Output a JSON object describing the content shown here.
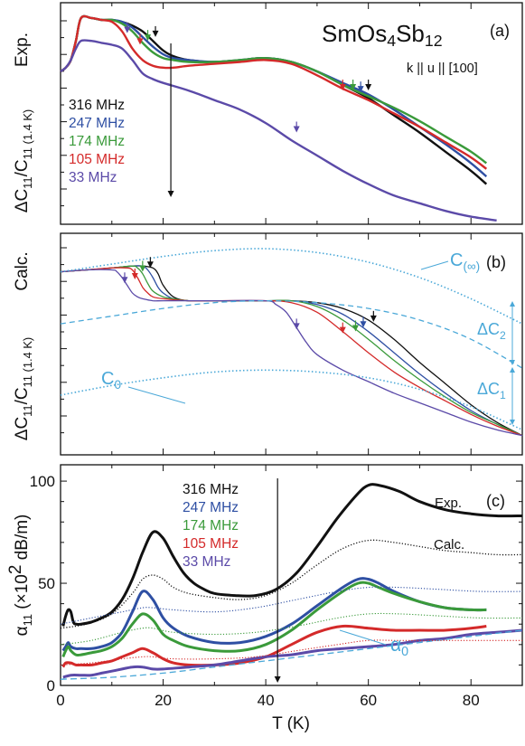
{
  "chart_data": [
    {
      "type": "line",
      "panel_label": "(a)",
      "title": "SmOs₄Sb₁₂",
      "condition": "k || u || [100]",
      "side_label": "Exp.",
      "ylabel": "ΔC₁₁/C₁₁ (1.4 K)",
      "xlim": [
        0,
        90
      ],
      "series": [
        {
          "name": "316 MHz",
          "color": "#111111",
          "x": [
            0,
            1,
            2,
            3,
            4,
            6,
            8,
            10,
            12,
            14,
            16,
            18,
            20,
            22,
            25,
            30,
            35,
            40,
            45,
            50,
            55,
            60,
            65,
            70,
            75,
            80,
            83
          ],
          "y": [
            0.64,
            0.66,
            0.7,
            0.8,
            0.92,
            0.92,
            0.91,
            0.91,
            0.9,
            0.88,
            0.85,
            0.8,
            0.75,
            0.72,
            0.7,
            0.69,
            0.7,
            0.71,
            0.69,
            0.64,
            0.57,
            0.5,
            0.41,
            0.32,
            0.22,
            0.12,
            0.05
          ]
        },
        {
          "name": "247 MHz",
          "color": "#2e4fa3",
          "x": [
            0,
            1,
            2,
            3,
            4,
            6,
            8,
            10,
            12,
            14,
            16,
            18,
            20,
            22,
            25,
            30,
            35,
            40,
            45,
            50,
            55,
            60,
            65,
            70,
            75,
            80,
            83
          ],
          "y": [
            0.64,
            0.66,
            0.7,
            0.8,
            0.92,
            0.92,
            0.91,
            0.91,
            0.9,
            0.87,
            0.82,
            0.77,
            0.73,
            0.71,
            0.7,
            0.69,
            0.7,
            0.71,
            0.69,
            0.64,
            0.58,
            0.52,
            0.44,
            0.35,
            0.26,
            0.16,
            0.09
          ]
        },
        {
          "name": "174 MHz",
          "color": "#3a9a3a",
          "x": [
            0,
            1,
            2,
            3,
            4,
            6,
            8,
            10,
            12,
            14,
            16,
            18,
            20,
            22,
            25,
            30,
            35,
            40,
            45,
            50,
            55,
            60,
            65,
            70,
            75,
            80,
            83
          ],
          "y": [
            0.64,
            0.66,
            0.7,
            0.8,
            0.92,
            0.92,
            0.91,
            0.91,
            0.89,
            0.85,
            0.79,
            0.74,
            0.71,
            0.7,
            0.69,
            0.69,
            0.7,
            0.71,
            0.69,
            0.64,
            0.57,
            0.51,
            0.45,
            0.38,
            0.3,
            0.22,
            0.16
          ]
        },
        {
          "name": "105 MHz",
          "color": "#d42a2a",
          "x": [
            0,
            1,
            2,
            3,
            4,
            6,
            8,
            10,
            12,
            14,
            16,
            18,
            20,
            22,
            25,
            30,
            35,
            40,
            45,
            50,
            55,
            60,
            65,
            70,
            75,
            80,
            83
          ],
          "y": [
            0.64,
            0.66,
            0.7,
            0.8,
            0.92,
            0.92,
            0.91,
            0.9,
            0.85,
            0.76,
            0.7,
            0.67,
            0.66,
            0.66,
            0.67,
            0.68,
            0.69,
            0.7,
            0.68,
            0.62,
            0.55,
            0.49,
            0.42,
            0.35,
            0.27,
            0.19,
            0.13
          ]
        },
        {
          "name": "33 MHz",
          "color": "#5b4aa8",
          "x": [
            0,
            1,
            2,
            3,
            4,
            6,
            8,
            10,
            12,
            14,
            16,
            18,
            20,
            25,
            30,
            35,
            40,
            45,
            50,
            55,
            60,
            65,
            70,
            75,
            80,
            85
          ],
          "y": [
            0.64,
            0.66,
            0.7,
            0.76,
            0.8,
            0.8,
            0.79,
            0.78,
            0.76,
            0.7,
            0.63,
            0.6,
            0.58,
            0.54,
            0.49,
            0.44,
            0.37,
            0.28,
            0.2,
            0.12,
            0.05,
            -0.01,
            -0.05,
            -0.09,
            -0.12,
            -0.14
          ]
        }
      ],
      "ylim": [
        -0.16,
        1.0
      ]
    },
    {
      "type": "line",
      "panel_label": "(b)",
      "side_label": "Calc.",
      "ylabel": "ΔC₁₁/C₁₁ (1.4 K)",
      "xlim": [
        0,
        90
      ],
      "ylim": [
        -0.1,
        1.05
      ],
      "series": [
        {
          "name": "316 MHz",
          "color": "#111111",
          "x": [
            0,
            5,
            10,
            14,
            16,
            18,
            19,
            20,
            22,
            25,
            30,
            40,
            45,
            50,
            55,
            60,
            65,
            70,
            75,
            80,
            85,
            90
          ],
          "y": [
            0.85,
            0.86,
            0.87,
            0.88,
            0.88,
            0.87,
            0.84,
            0.78,
            0.72,
            0.7,
            0.7,
            0.7,
            0.7,
            0.69,
            0.66,
            0.6,
            0.5,
            0.38,
            0.27,
            0.16,
            0.07,
            0.0
          ]
        },
        {
          "name": "247 MHz",
          "color": "#2e4fa3",
          "x": [
            0,
            5,
            10,
            14,
            16,
            17,
            18,
            19,
            20,
            22,
            25,
            30,
            40,
            45,
            50,
            55,
            60,
            65,
            70,
            75,
            80,
            85,
            90
          ],
          "y": [
            0.85,
            0.86,
            0.87,
            0.88,
            0.88,
            0.86,
            0.82,
            0.77,
            0.74,
            0.71,
            0.7,
            0.7,
            0.7,
            0.7,
            0.68,
            0.63,
            0.54,
            0.43,
            0.32,
            0.22,
            0.13,
            0.06,
            0.0
          ]
        },
        {
          "name": "174 MHz",
          "color": "#3a9a3a",
          "x": [
            0,
            5,
            10,
            14,
            15,
            16,
            17,
            18,
            20,
            22,
            25,
            30,
            40,
            45,
            50,
            55,
            60,
            65,
            70,
            75,
            80,
            85,
            90
          ],
          "y": [
            0.85,
            0.86,
            0.87,
            0.88,
            0.87,
            0.84,
            0.79,
            0.75,
            0.72,
            0.71,
            0.7,
            0.7,
            0.7,
            0.7,
            0.67,
            0.6,
            0.5,
            0.39,
            0.29,
            0.2,
            0.12,
            0.06,
            0.0
          ]
        },
        {
          "name": "105 MHz",
          "color": "#d42a2a",
          "x": [
            0,
            5,
            10,
            13,
            14,
            15,
            16,
            17,
            18,
            20,
            25,
            30,
            40,
            45,
            50,
            55,
            60,
            65,
            70,
            75,
            80,
            85,
            90
          ],
          "y": [
            0.85,
            0.86,
            0.87,
            0.87,
            0.86,
            0.82,
            0.77,
            0.74,
            0.72,
            0.71,
            0.7,
            0.7,
            0.7,
            0.69,
            0.64,
            0.54,
            0.43,
            0.33,
            0.25,
            0.18,
            0.11,
            0.05,
            0.0
          ]
        },
        {
          "name": "33 MHz",
          "color": "#5b4aa8",
          "x": [
            0,
            5,
            10,
            11,
            12,
            13,
            14,
            15,
            16,
            18,
            20,
            25,
            30,
            40,
            42,
            44,
            46,
            48,
            50,
            55,
            60,
            65,
            70,
            75,
            80,
            85,
            90
          ],
          "y": [
            0.85,
            0.86,
            0.86,
            0.85,
            0.82,
            0.78,
            0.74,
            0.72,
            0.71,
            0.7,
            0.7,
            0.7,
            0.7,
            0.7,
            0.68,
            0.64,
            0.56,
            0.48,
            0.42,
            0.34,
            0.28,
            0.22,
            0.17,
            0.12,
            0.07,
            0.03,
            0.0
          ]
        },
        {
          "name": "C(∞)",
          "color": "#4aa8d8",
          "style": "dotted",
          "x": [
            0,
            10,
            20,
            30,
            40,
            50,
            60,
            70,
            80,
            90
          ],
          "y": [
            0.85,
            0.89,
            0.93,
            0.96,
            0.97,
            0.95,
            0.9,
            0.82,
            0.71,
            0.58
          ]
        },
        {
          "name": "dashed",
          "color": "#4aa8d8",
          "style": "dashed",
          "x": [
            0,
            10,
            20,
            30,
            40,
            50,
            60,
            70,
            80,
            90
          ],
          "y": [
            0.58,
            0.62,
            0.66,
            0.69,
            0.7,
            0.69,
            0.66,
            0.6,
            0.5,
            0.35
          ]
        },
        {
          "name": "C0",
          "color": "#4aa8d8",
          "style": "dotted",
          "x": [
            0,
            10,
            20,
            30,
            40,
            50,
            60,
            70,
            80,
            90
          ],
          "y": [
            0.21,
            0.26,
            0.3,
            0.33,
            0.34,
            0.33,
            0.3,
            0.24,
            0.15,
            0.03
          ]
        }
      ],
      "annotations": [
        "C(∞)",
        "C0",
        "ΔC2",
        "ΔC1"
      ]
    },
    {
      "type": "line",
      "panel_label": "(c)",
      "xlabel": "T (K)",
      "ylabel": "α₁₁ (×10² dB/m)",
      "xlim": [
        0,
        90
      ],
      "ylim": [
        0,
        108
      ],
      "x_ticks": [
        0,
        20,
        40,
        60,
        80
      ],
      "y_ticks": [
        0,
        50,
        100
      ],
      "series": [
        {
          "name": "316 MHz",
          "color": "#111111",
          "x": [
            0.5,
            1,
            1.5,
            2,
            2.5,
            3,
            4,
            6,
            8,
            10,
            12,
            14,
            16,
            18,
            20,
            22,
            24,
            26,
            28,
            30,
            34,
            38,
            42,
            46,
            50,
            54,
            58,
            60,
            62,
            66,
            70,
            75,
            80,
            85,
            90
          ],
          "y": [
            29,
            34,
            37,
            36,
            31,
            30,
            30,
            31,
            33,
            36,
            42,
            52,
            65,
            75,
            72,
            63,
            55,
            50,
            47,
            45,
            44,
            44,
            47,
            55,
            68,
            82,
            94,
            98,
            98,
            95,
            90,
            86,
            84,
            83,
            83
          ]
        },
        {
          "name": "247 MHz",
          "color": "#2e4fa3",
          "x": [
            0.5,
            1,
            1.5,
            2,
            3,
            4,
            6,
            8,
            10,
            12,
            14,
            16,
            18,
            20,
            22,
            25,
            30,
            35,
            40,
            45,
            50,
            55,
            58,
            60,
            62,
            65,
            70,
            75,
            80,
            83
          ],
          "y": [
            17,
            19,
            21,
            19,
            18,
            18,
            18,
            19,
            21,
            26,
            36,
            46,
            42,
            33,
            28,
            24,
            21,
            21,
            24,
            30,
            39,
            48,
            52,
            52,
            50,
            46,
            41,
            38,
            37,
            37
          ]
        },
        {
          "name": "174 MHz",
          "color": "#3a9a3a",
          "x": [
            0.5,
            1,
            1.5,
            2,
            3,
            4,
            6,
            8,
            10,
            12,
            14,
            16,
            18,
            20,
            22,
            25,
            30,
            35,
            40,
            45,
            50,
            55,
            58,
            60,
            62,
            65,
            70,
            75,
            80,
            83
          ],
          "y": [
            14,
            17,
            19,
            17,
            15,
            15,
            16,
            17,
            19,
            23,
            30,
            35,
            32,
            25,
            22,
            19,
            17,
            17,
            20,
            27,
            37,
            46,
            50,
            50,
            48,
            45,
            41,
            38,
            37,
            37
          ]
        },
        {
          "name": "105 MHz",
          "color": "#d42a2a",
          "x": [
            0.5,
            1,
            2,
            3,
            4,
            6,
            8,
            10,
            12,
            14,
            16,
            18,
            20,
            22,
            25,
            30,
            35,
            40,
            45,
            50,
            55,
            60,
            65,
            70,
            75,
            80,
            83
          ],
          "y": [
            9,
            11,
            11,
            10,
            10,
            10,
            11,
            12,
            14,
            16,
            18,
            16,
            13,
            11,
            10,
            10,
            11,
            14,
            20,
            26,
            29,
            28,
            27,
            27,
            27,
            28,
            29
          ]
        },
        {
          "name": "33 MHz",
          "color": "#5b4aa8",
          "x": [
            0.5,
            2,
            4,
            6,
            8,
            10,
            12,
            14,
            16,
            18,
            20,
            25,
            30,
            35,
            40,
            45,
            50,
            55,
            60,
            65,
            70,
            75,
            80,
            85,
            90
          ],
          "y": [
            4,
            5,
            5,
            5,
            6,
            7,
            8,
            9,
            9,
            8,
            8,
            9,
            10,
            12,
            14,
            15,
            17,
            18,
            19,
            20,
            22,
            23,
            25,
            26,
            27
          ]
        },
        {
          "name": "Calc.",
          "color": "#111111",
          "style": "dotted",
          "x": [
            0,
            5,
            10,
            14,
            16,
            18,
            20,
            22,
            25,
            30,
            35,
            40,
            45,
            50,
            55,
            60,
            65,
            70,
            75,
            80,
            85,
            90
          ],
          "y": [
            28,
            30,
            35,
            45,
            52,
            54,
            52,
            48,
            45,
            43,
            42,
            44,
            50,
            59,
            67,
            71,
            70,
            68,
            66,
            65,
            64,
            64
          ]
        },
        {
          "name": "α₀",
          "color": "#4aa8d8",
          "style": "dashed",
          "x": [
            0,
            10,
            20,
            30,
            40,
            50,
            60,
            70,
            80,
            90
          ],
          "y": [
            3,
            4,
            6,
            9,
            12,
            15,
            18,
            21,
            24,
            27
          ]
        }
      ],
      "annotations": [
        "Exp.",
        "Calc.",
        "α₀"
      ]
    }
  ],
  "legend": [
    "316 MHz",
    "247 MHz",
    "174 MHz",
    "105 MHz",
    "33 MHz"
  ]
}
